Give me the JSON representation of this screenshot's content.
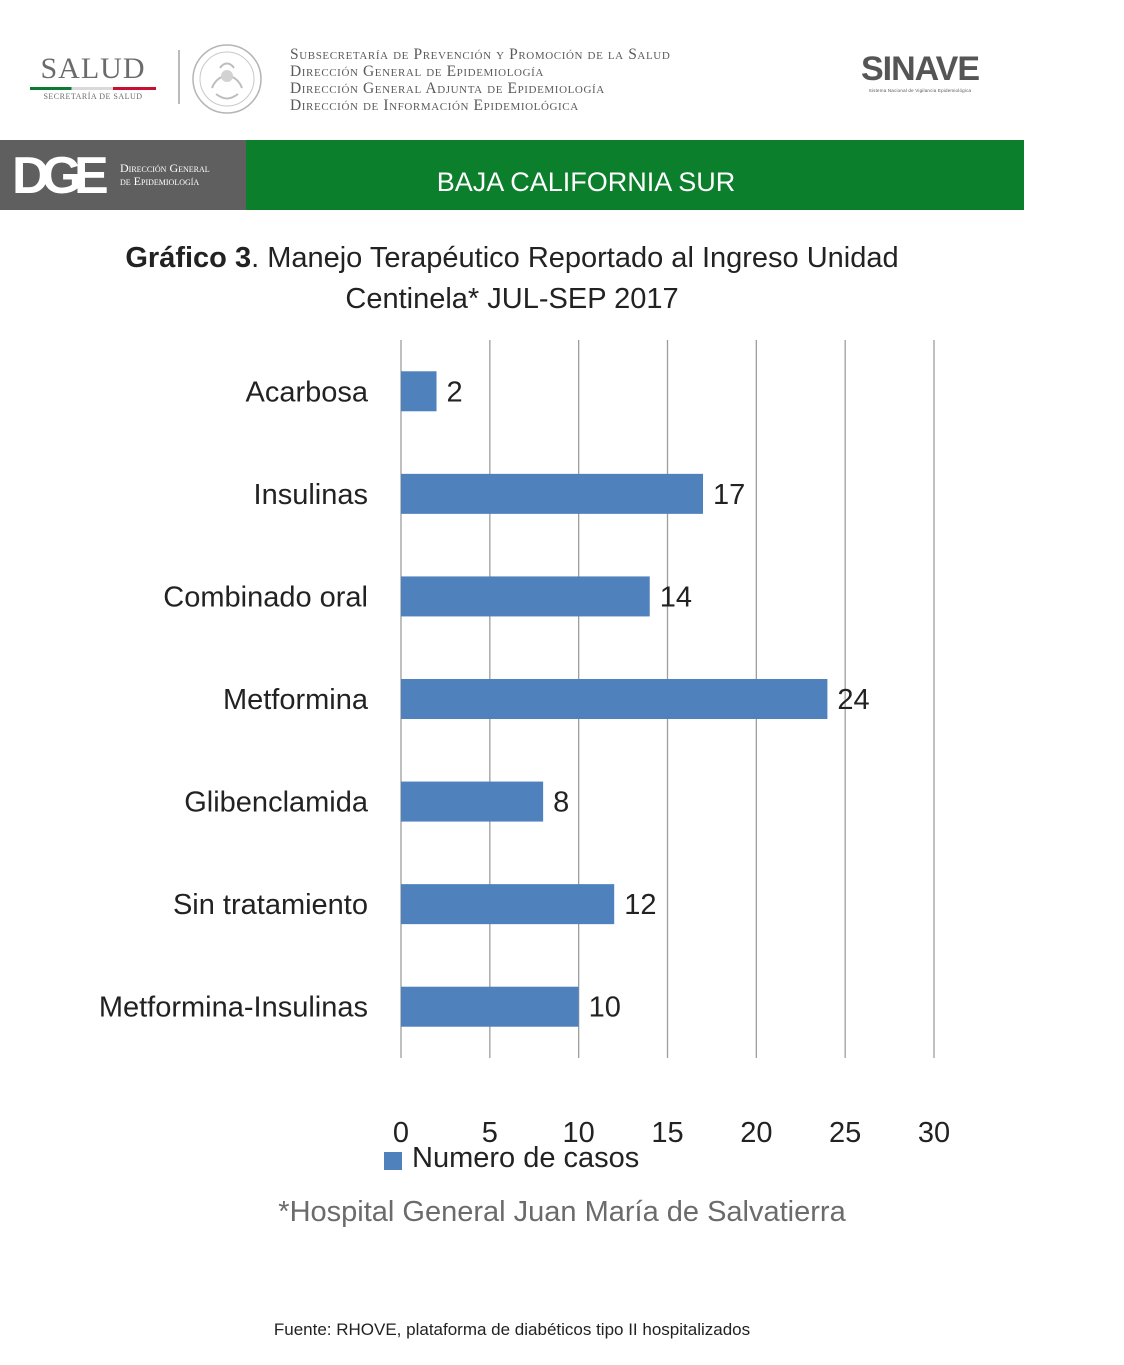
{
  "header": {
    "salud_word": "SALUD",
    "salud_sub": "SECRETARÍA DE SALUD",
    "agency_lines": [
      "Subsecretaría de Prevención y Promoción de la Salud",
      "Dirección General de Epidemiología",
      "Dirección General Adjunta de Epidemiología",
      "Dirección de Información Epidemiológica"
    ],
    "sinave_word": "SINAVE",
    "sinave_sub": "Sistema Nacional de Vigilancia Epidemiológica"
  },
  "banner": {
    "dge_mark": "DGE",
    "dge_line1": "Dirección General",
    "dge_line2": "de Epidemiología",
    "state": "BAJA CALIFORNIA SUR",
    "left_color": "#5f5f5f",
    "right_color": "#0c7f2c"
  },
  "title": {
    "label": "Gráfico 3",
    "text": ". Manejo Terapéutico Reportado al Ingreso Unidad",
    "line2": "Centinela* JUL-SEP 2017"
  },
  "chart_data": {
    "type": "bar",
    "orientation": "horizontal",
    "categories": [
      "Acarbosa",
      "Insulinas",
      "Combinado oral",
      "Metformina",
      "Glibenclamida",
      "Sin tratamiento",
      "Metformina-Insulinas"
    ],
    "series": [
      {
        "name": "Numero de casos",
        "values": [
          2,
          17,
          14,
          24,
          8,
          12,
          10
        ],
        "color": "#4f81bd"
      }
    ],
    "xlim": [
      0,
      30
    ],
    "xticks": [
      "0",
      "5",
      "10",
      "15",
      "20",
      "25",
      "30"
    ],
    "grid": true,
    "legend_position": "bottom"
  },
  "legend": {
    "label": "Numero de casos"
  },
  "footnote": "*Hospital General Juan María de Salvatierra",
  "source": "Fuente: RHOVE, plataforma de diabéticos tipo II hospitalizados"
}
